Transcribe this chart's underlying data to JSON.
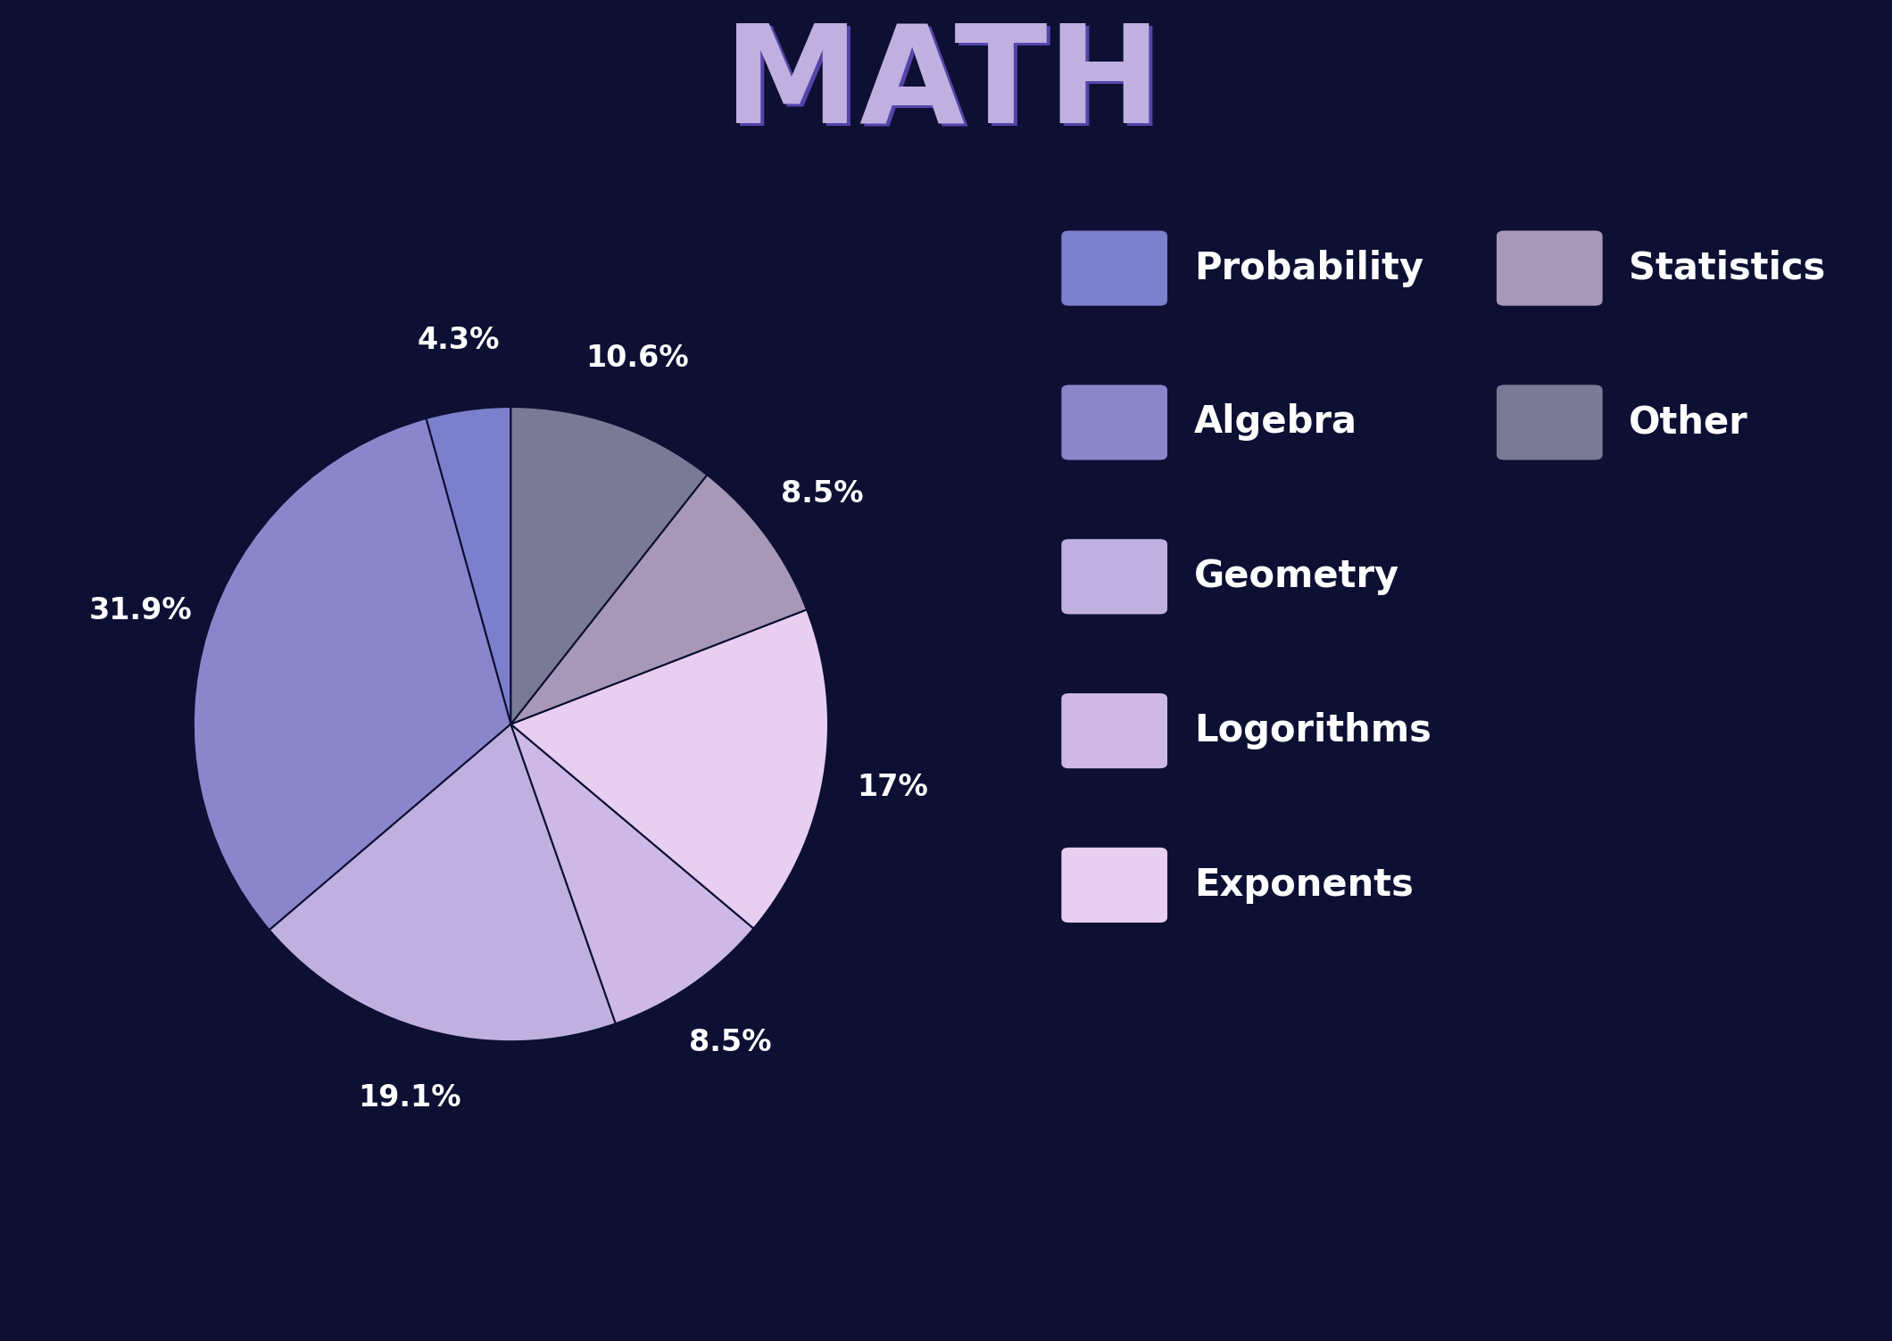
{
  "title": "MATH",
  "background_color": "#0d1033",
  "slices": [
    {
      "label": "Probability",
      "value": 4.3,
      "color": "#7b7fcc"
    },
    {
      "label": "Algebra",
      "value": 31.9,
      "color": "#8b85cc"
    },
    {
      "label": "Geometry",
      "value": 19.1,
      "color": "#c0b0e0"
    },
    {
      "label": "Logorithms",
      "value": 8.5,
      "color": "#ceb8e8"
    },
    {
      "label": "Exponents",
      "value": 17.0,
      "color": "#e8cef0"
    },
    {
      "label": "Statistics",
      "value": 8.5,
      "color": "#a898b8"
    },
    {
      "label": "Other",
      "value": 10.6,
      "color": "#7a7a96"
    }
  ],
  "pct_labels": [
    {
      "text": "4.3%",
      "slice_idx": 0
    },
    {
      "text": "31.9%",
      "slice_idx": 1
    },
    {
      "text": "19.1%",
      "slice_idx": 2
    },
    {
      "text": "8.5%",
      "slice_idx": 3
    },
    {
      "text": "17%",
      "slice_idx": 4
    },
    {
      "text": "8.5%",
      "slice_idx": 5
    },
    {
      "text": "10.6%",
      "slice_idx": 6
    }
  ],
  "label_color": "#ffffff",
  "legend_label_color": "#ffffff",
  "start_angle": 90,
  "legend_left_col": [
    {
      "label": "Probability",
      "color": "#7b7fcc"
    },
    {
      "label": "Algebra",
      "color": "#8b85cc"
    },
    {
      "label": "Geometry",
      "color": "#c0b0e0"
    },
    {
      "label": "Logorithms",
      "color": "#ceb8e8"
    },
    {
      "label": "Exponents",
      "color": "#e8cef0"
    }
  ],
  "legend_right_col": [
    {
      "label": "Statistics",
      "color": "#a898b8"
    },
    {
      "label": "Other",
      "color": "#7a7a96"
    }
  ]
}
